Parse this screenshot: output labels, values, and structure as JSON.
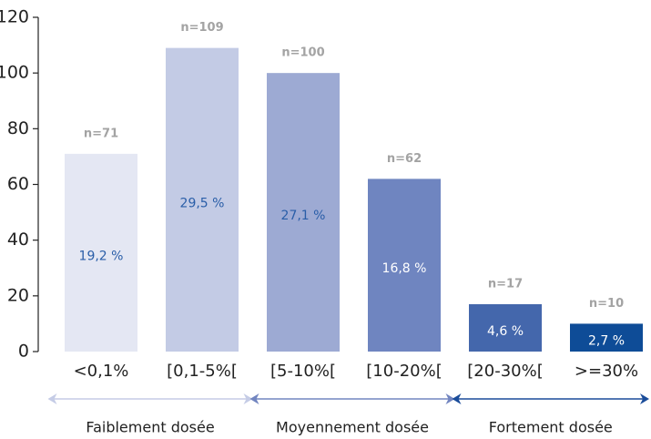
{
  "chart_data": {
    "type": "bar",
    "categories": [
      "<0,1%",
      "[0,1-5%[",
      "[5-10%[",
      "[10-20%[",
      "[20-30%[",
      ">=30%"
    ],
    "values": [
      71,
      109,
      100,
      62,
      17,
      10
    ],
    "value_labels": [
      "n=71",
      "n=109",
      "n=100",
      "n=62",
      "n=17",
      "n=10"
    ],
    "share_labels": [
      "19,2 %",
      "29,5 %",
      "27,1 %",
      "16,8 %",
      "4,6 %",
      "2,7 %"
    ],
    "colors": [
      "#e4e7f3",
      "#c3cbe5",
      "#9daad3",
      "#6f85c0",
      "#4467ac",
      "#0e4c97"
    ],
    "share_label_colors": [
      "#2a5ea8",
      "#2a5ea8",
      "#2a5ea8",
      "#ffffff",
      "#ffffff",
      "#ffffff"
    ],
    "ylim": [
      0,
      120
    ],
    "yticks": [
      0,
      20,
      40,
      60,
      80,
      100,
      120
    ],
    "groups": [
      {
        "label": "Faiblement dosée",
        "from": 0,
        "to": 1,
        "color": "#c5cce6"
      },
      {
        "label": "Moyennement dosée",
        "from": 2,
        "to": 3,
        "color": "#7285c0"
      },
      {
        "label": "Fortement dosée",
        "from": 4,
        "to": 5,
        "color": "#1a4c9a"
      }
    ]
  }
}
